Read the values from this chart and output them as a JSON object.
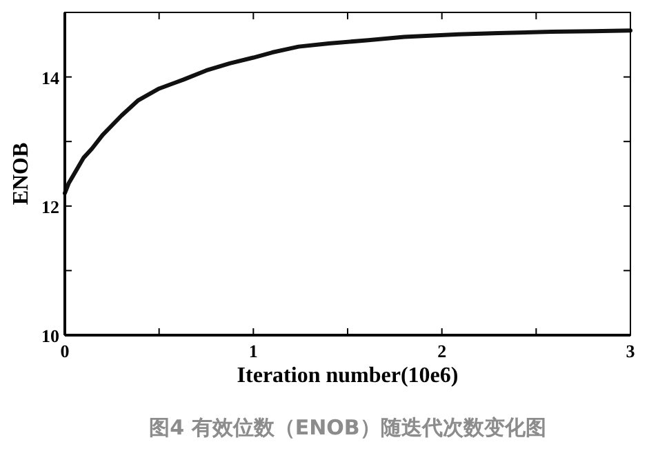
{
  "chart_data": {
    "type": "line",
    "xlabel": "Iteration number(10e6)",
    "ylabel": "ENOB",
    "annotations": [
      "图4 有效位数（ENOB）随迭代次数变化图"
    ],
    "xlim": [
      0,
      3
    ],
    "xticks": [
      0,
      {
        "value": 0.5,
        "label": null
      },
      1,
      {
        "value": 1.5,
        "label": null
      },
      2,
      {
        "value": 2.5,
        "label": null
      },
      3
    ],
    "ylim": [
      10,
      15
    ],
    "yticks": [
      10,
      {
        "value": 11,
        "label": null
      },
      12,
      {
        "value": 13,
        "label": null
      },
      14,
      {
        "value": 15,
        "label": null
      }
    ],
    "grid": false,
    "marker": "none",
    "line_style": "solid",
    "series": [
      {
        "color": "#111111",
        "x": [
          0,
          0.02,
          0.05,
          0.1,
          0.144,
          0.2,
          0.3,
          0.39,
          0.5,
          0.63,
          0.75,
          0.875,
          1.0,
          1.1,
          1.24,
          1.4,
          1.61,
          1.8,
          2.09,
          2.3,
          2.58,
          2.8,
          3.0
        ],
        "values": [
          12.2,
          12.35,
          12.5,
          12.75,
          12.89,
          13.1,
          13.4,
          13.64,
          13.82,
          13.96,
          14.1,
          14.21,
          14.3,
          14.38,
          14.47,
          14.52,
          14.57,
          14.62,
          14.66,
          14.68,
          14.7,
          14.71,
          14.72
        ]
      }
    ]
  }
}
